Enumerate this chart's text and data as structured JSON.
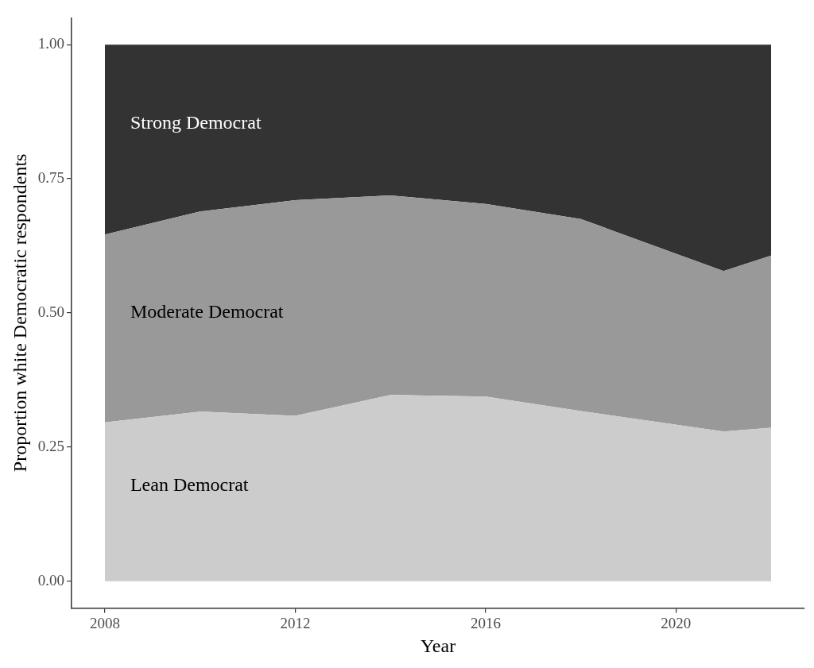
{
  "chart_data": {
    "type": "area",
    "stacked": true,
    "xlabel": "Year",
    "ylabel": "Proportion white Democratic respondents",
    "x": [
      2008,
      2010,
      2012,
      2014,
      2016,
      2018,
      2021,
      2022
    ],
    "series": [
      {
        "name": "Lean Democrat",
        "color": "#cccccc",
        "values": [
          0.296,
          0.316,
          0.308,
          0.347,
          0.344,
          0.317,
          0.279,
          0.286
        ]
      },
      {
        "name": "Moderate Democrat",
        "color": "#999999",
        "values": [
          0.35,
          0.373,
          0.402,
          0.372,
          0.359,
          0.358,
          0.299,
          0.321
        ]
      },
      {
        "name": "Strong Democrat",
        "color": "#333333",
        "values": [
          0.354,
          0.311,
          0.29,
          0.281,
          0.297,
          0.325,
          0.422,
          0.393
        ]
      }
    ],
    "xlim": [
      2007.3,
      2022.7
    ],
    "xticks": [
      2008,
      2012,
      2016,
      2020
    ],
    "ylim": [
      -0.05,
      1.05
    ],
    "yticks": [
      {
        "value": 0,
        "label": "0.00"
      },
      {
        "value": 0.25,
        "label": "0.25"
      },
      {
        "value": 0.5,
        "label": "0.50"
      },
      {
        "value": 0.75,
        "label": "0.75"
      },
      {
        "value": 1,
        "label": "1.00"
      }
    ]
  }
}
